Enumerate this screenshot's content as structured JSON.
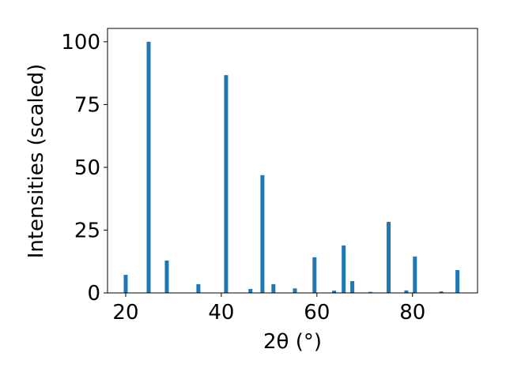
{
  "chart_data": {
    "type": "bar",
    "xlabel": "2θ (°)",
    "ylabel": "Intensities (scaled)",
    "x": [
      20.0,
      24.8,
      28.6,
      35.2,
      41.0,
      46.1,
      48.6,
      50.9,
      55.4,
      59.5,
      63.6,
      65.6,
      67.4,
      71.2,
      75.0,
      78.7,
      80.5,
      86.0,
      89.4
    ],
    "values": [
      7.2,
      100,
      12.9,
      3.5,
      86.7,
      1.6,
      46.9,
      3.5,
      1.8,
      14.2,
      0.9,
      18.9,
      4.7,
      0.4,
      28.3,
      1.0,
      14.5,
      0.6,
      9.1
    ],
    "color": "#1f77b4",
    "xlim": [
      16.2,
      93.6
    ],
    "xticks": [
      20,
      40,
      60,
      80
    ],
    "ylim": [
      0,
      105.3
    ],
    "yticks": [
      0,
      25,
      50,
      75,
      100
    ]
  }
}
